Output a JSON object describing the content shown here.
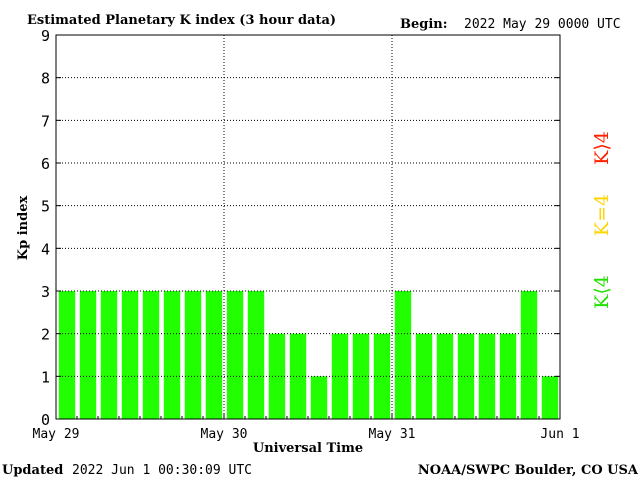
{
  "header": {
    "title": "Estimated Planetary K index (3 hour data)",
    "begin_label": "Begin:",
    "begin_value": "2022 May 29 0000 UTC"
  },
  "footer": {
    "updated_label": "Updated",
    "updated_value": "2022 Jun  1 00:30:09 UTC",
    "credit": "NOAA/SWPC Boulder, CO USA"
  },
  "legend": {
    "items": [
      {
        "label": "K⟩4",
        "color": "#ff2000"
      },
      {
        "label": "K=4",
        "color": "#ffd400"
      },
      {
        "label": "K⟨4",
        "color": "#22e000"
      }
    ]
  },
  "chart_data": {
    "type": "bar",
    "title": "Estimated Planetary K index (3 hour data)",
    "xlabel": "Universal Time",
    "ylabel": "Kp index",
    "ylim": [
      0,
      9
    ],
    "yticks": [
      0,
      1,
      2,
      3,
      4,
      5,
      6,
      7,
      8,
      9
    ],
    "x_tick_labels": [
      "May 29",
      "May 30",
      "May 31",
      "Jun 1"
    ],
    "grid": true,
    "bar_color": "#22ff00",
    "values": [
      3,
      3,
      3,
      3,
      3,
      3,
      3,
      3,
      3,
      3,
      2,
      2,
      1,
      2,
      2,
      2,
      3,
      2,
      2,
      2,
      2,
      2,
      3,
      1
    ]
  }
}
